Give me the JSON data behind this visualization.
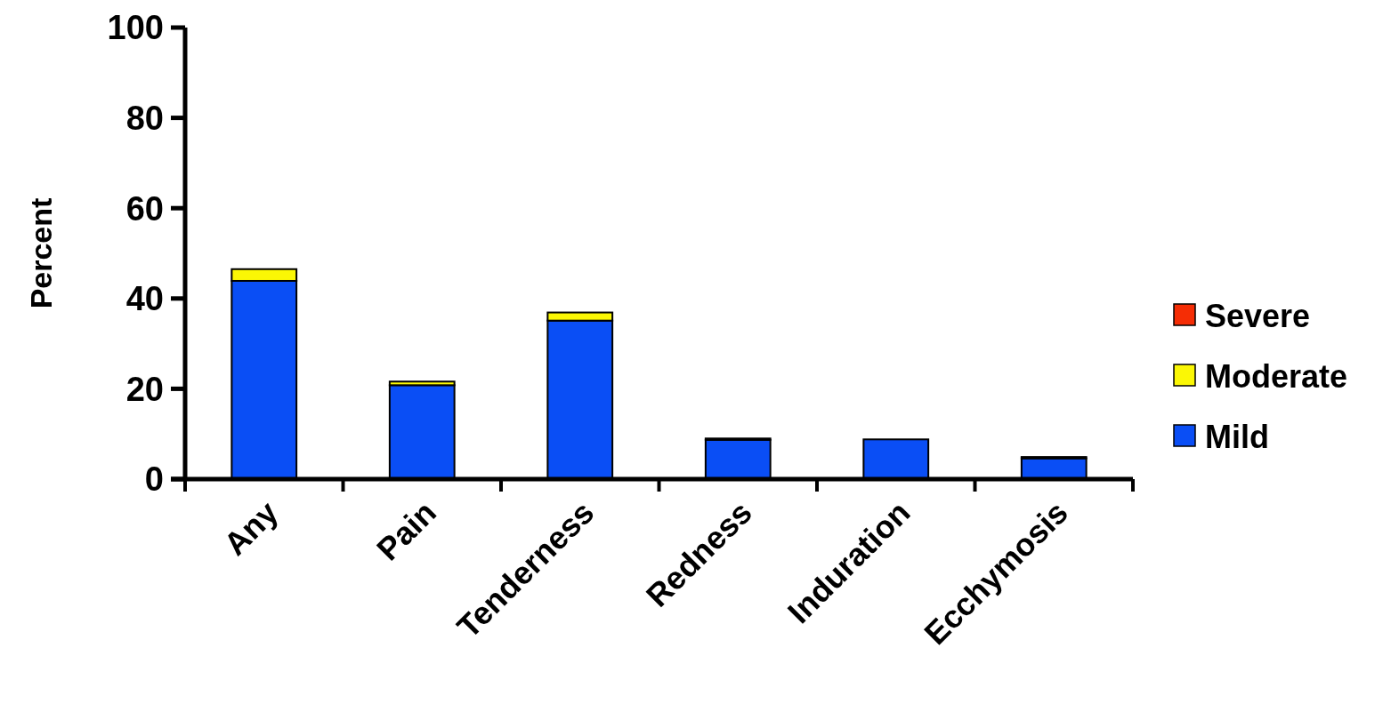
{
  "chart_data": {
    "type": "bar",
    "stacked": true,
    "ylabel": "Percent",
    "categories": [
      "Any",
      "Pain",
      "Tenderness",
      "Redness",
      "Induration",
      "Ecchymosis"
    ],
    "series": [
      {
        "name": "Mild",
        "color": "#0a4ef5",
        "values": [
          43.9,
          20.8,
          35.1,
          8.7,
          8.8,
          4.6
        ]
      },
      {
        "name": "Moderate",
        "color": "#fbf705",
        "values": [
          2.6,
          0.8,
          1.8,
          0.3,
          0,
          0.3
        ]
      },
      {
        "name": "Severe",
        "color": "#f52d05",
        "values": [
          0,
          0,
          0,
          0,
          0,
          0
        ]
      }
    ],
    "ylim": [
      0,
      100
    ],
    "yticks": [
      0,
      20,
      40,
      60,
      80,
      100
    ],
    "grid": false,
    "legend": "right"
  }
}
